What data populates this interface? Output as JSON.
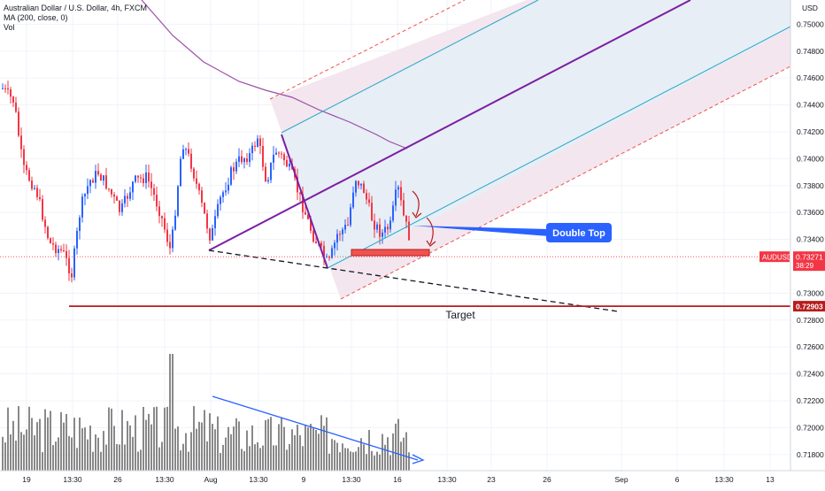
{
  "header": {
    "symbol_line": "Australian Dollar / U.S. Dollar, 4h, FXCM",
    "ma_line": "MA (200, close, 0)",
    "vol_line": "Vol"
  },
  "price_axis": {
    "currency": "USD",
    "min": 0.7168,
    "max": 0.7518,
    "ticks": [
      "0.75000",
      "0.74800",
      "0.74600",
      "0.74400",
      "0.74200",
      "0.74000",
      "0.73800",
      "0.73600",
      "0.73400",
      "0.73000",
      "0.72800",
      "0.72600",
      "0.72400",
      "0.72200",
      "0.72000",
      "0.71800"
    ]
  },
  "time_axis": {
    "labels": [
      "19",
      "13:30",
      "26",
      "13:30",
      "Aug",
      "13:30",
      "9",
      "13:30",
      "16",
      "13:30",
      "23",
      "26",
      "Sep",
      "6",
      "13:30",
      "13"
    ]
  },
  "current_price": {
    "symbol": "AUDUSD",
    "value": "0.73271",
    "countdown": "38:29",
    "value_num": 0.73271,
    "color": "#f23645"
  },
  "target_level": {
    "value": "0.72903",
    "value_num": 0.72903,
    "label": "Target",
    "color": "#b71c1c"
  },
  "annotation": {
    "text": "Double Top",
    "color": "#2962ff"
  },
  "colors": {
    "up": "#2962ff",
    "down": "#f23645",
    "ma": "#9c4ea6",
    "pitchfork": "#7b1fa2",
    "channel": "#26a6c9",
    "volume": "#6b6b6b"
  },
  "chart_data": {
    "type": "candlestick",
    "price_range": [
      0.7168,
      0.7518
    ],
    "ma": {
      "name": "MA (200, close, 0)"
    },
    "support_level": 0.72903,
    "last_close": 0.73271
  }
}
